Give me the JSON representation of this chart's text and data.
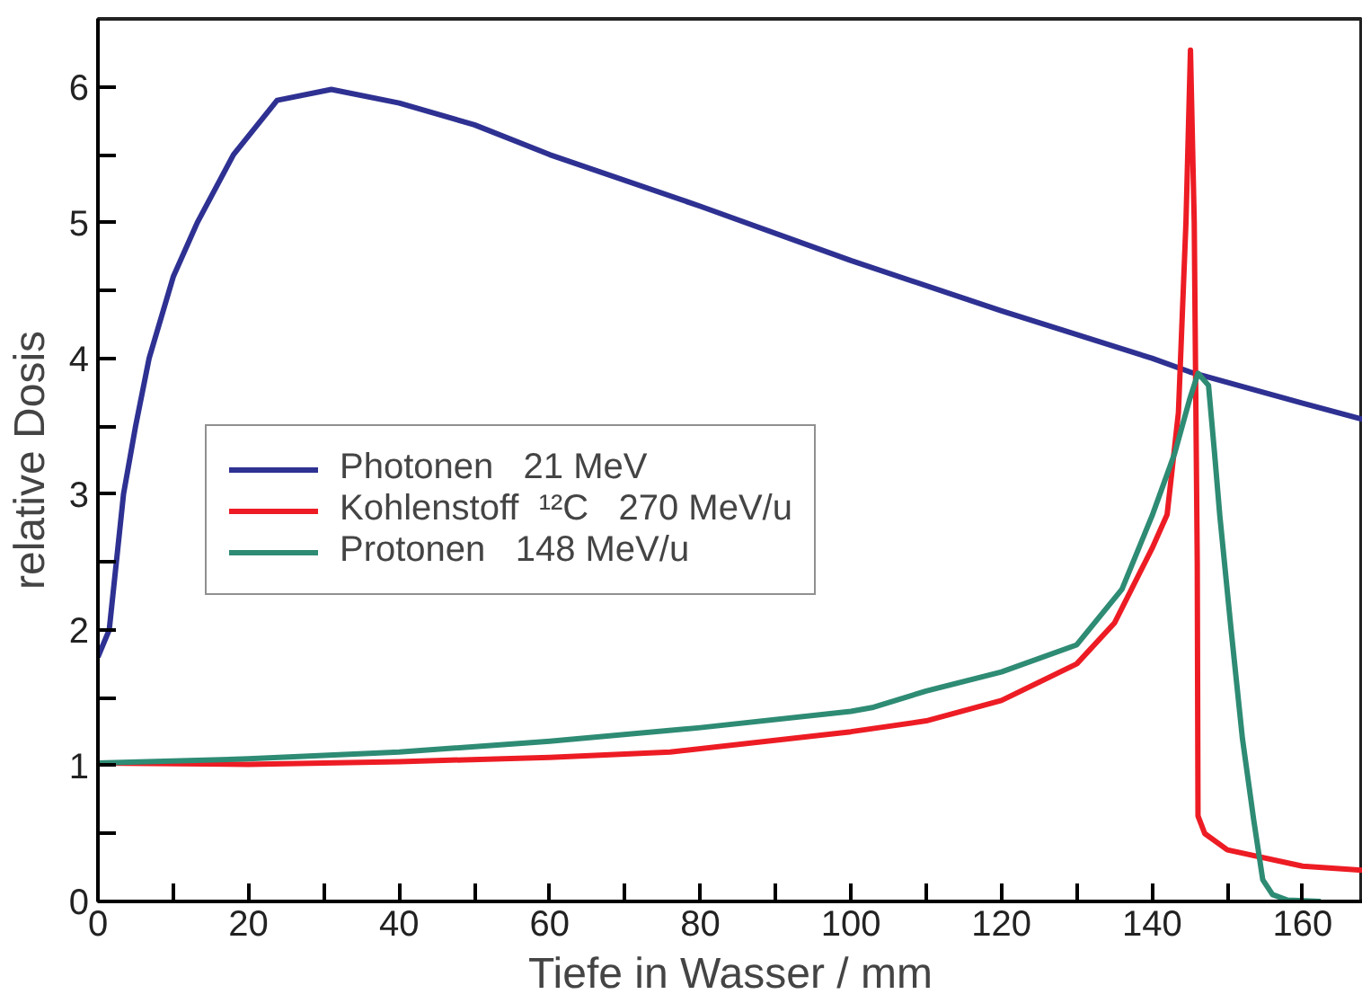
{
  "chart_data": {
    "type": "line",
    "xlabel": "Tiefe in Wasser / mm",
    "ylabel": "relative Dosis",
    "xlim": [
      0,
      168
    ],
    "ylim": [
      0,
      6.5
    ],
    "xticks": [
      0,
      {
        "value": 10,
        "label": null
      },
      20,
      {
        "value": 30,
        "label": null
      },
      40,
      {
        "value": 50,
        "label": null
      },
      60,
      {
        "value": 70,
        "label": null
      },
      80,
      {
        "value": 90,
        "label": null
      },
      100,
      {
        "value": 110,
        "label": null
      },
      120,
      {
        "value": 130,
        "label": null
      },
      140,
      {
        "value": 150,
        "label": null
      },
      160
    ],
    "yticks": [
      0,
      {
        "value": 0.5,
        "label": null
      },
      1,
      {
        "value": 1.5,
        "label": null
      },
      2,
      {
        "value": 2.5,
        "label": null
      },
      3,
      {
        "value": 3.5,
        "label": null
      },
      4,
      {
        "value": 4.5,
        "label": null
      },
      5,
      {
        "value": 5.5,
        "label": null
      },
      6
    ],
    "grid": false,
    "legend": "left",
    "line_style": "solid",
    "series": [
      {
        "name": "Photonen   21 MeV",
        "color": "#2e3192",
        "x": [
          0,
          1.5,
          3.4,
          5,
          6.8,
          10,
          13.2,
          18,
          23.8,
          31,
          40,
          50,
          60,
          80,
          100,
          120,
          140,
          145,
          160,
          168
        ],
        "values": [
          1.8,
          2.0,
          3.0,
          3.5,
          4.0,
          4.6,
          5.0,
          5.5,
          5.9,
          5.98,
          5.88,
          5.72,
          5.5,
          5.12,
          4.72,
          4.35,
          4.0,
          3.9,
          3.67,
          3.55
        ]
      },
      {
        "name": "Kohlenstoff  ¹²C   270 MeV/u",
        "color": "#ed1c24",
        "x": [
          0,
          20,
          40,
          60,
          76,
          100,
          110,
          120,
          130,
          135,
          140,
          142,
          143.5,
          144.5,
          145.1,
          145.6,
          146,
          146.1,
          147,
          150,
          160,
          168
        ],
        "values": [
          1.02,
          1.01,
          1.03,
          1.06,
          1.1,
          1.25,
          1.33,
          1.48,
          1.75,
          2.05,
          2.6,
          2.85,
          3.6,
          5.0,
          6.27,
          5.0,
          2.5,
          0.63,
          0.5,
          0.38,
          0.26,
          0.23
        ]
      },
      {
        "name": "Protonen   148 MeV/u",
        "color": "#2e8b74",
        "x": [
          0,
          20,
          40,
          60,
          80,
          100,
          103,
          110,
          120,
          130,
          136,
          140,
          143,
          145,
          146.1,
          147.5,
          148.3,
          149,
          150.5,
          152,
          153.5,
          154.7,
          156,
          158,
          162.4
        ],
        "values": [
          1.02,
          1.05,
          1.1,
          1.18,
          1.28,
          1.4,
          1.43,
          1.55,
          1.69,
          1.89,
          2.3,
          2.84,
          3.3,
          3.7,
          3.89,
          3.8,
          3.3,
          2.84,
          2.0,
          1.2,
          0.6,
          0.16,
          0.05,
          0.01,
          0
        ]
      }
    ]
  }
}
